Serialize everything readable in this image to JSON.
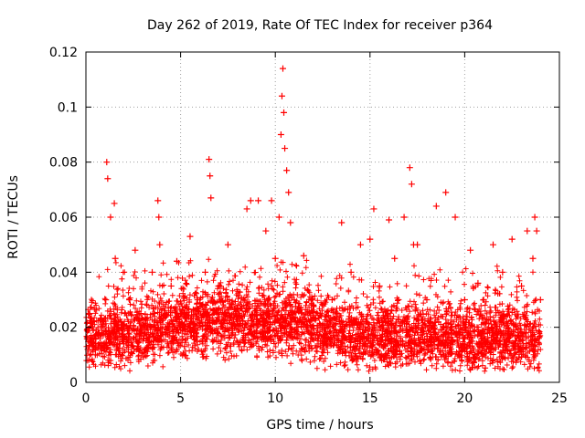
{
  "chart_data": {
    "type": "scatter",
    "title": "Day 262 of 2019, Rate Of TEC Index for receiver p364",
    "xlabel": "GPS time / hours",
    "ylabel": "ROTI / TECUs",
    "xlim": [
      0,
      25
    ],
    "ylim": [
      0,
      0.12
    ],
    "x_ticks": [
      0,
      5,
      10,
      15,
      20,
      25
    ],
    "x_tick_labels": [
      "0",
      "5",
      "10",
      "15",
      "20",
      "25"
    ],
    "y_ticks": [
      0,
      0.02,
      0.04,
      0.06,
      0.08,
      0.1,
      0.12
    ],
    "y_tick_labels": [
      "0",
      "0.02",
      "0.04",
      "0.06",
      "0.08",
      "0.1",
      "0.12"
    ],
    "grid": true,
    "marker": "+",
    "series": [
      {
        "name": "ROTI",
        "color": "#ff0000",
        "x": [
          0.1,
          0.2,
          0.35,
          0.5,
          0.7,
          0.9,
          1.05,
          1.1,
          1.15,
          1.3,
          1.5,
          1.55,
          1.7,
          2.0,
          2.3,
          2.6,
          2.9,
          3.2,
          3.5,
          3.8,
          3.85,
          3.9,
          4.2,
          4.5,
          4.8,
          5.2,
          5.5,
          5.9,
          6.3,
          6.5,
          6.55,
          6.6,
          7.0,
          7.5,
          8.0,
          8.5,
          8.7,
          9.1,
          9.5,
          9.8,
          10.0,
          10.2,
          10.3,
          10.35,
          10.4,
          10.45,
          10.5,
          10.6,
          10.7,
          10.8,
          11.0,
          11.5,
          12.0,
          12.5,
          13.0,
          13.5,
          14.0,
          14.5,
          15.0,
          15.2,
          15.5,
          16.0,
          16.3,
          16.5,
          16.8,
          17.1,
          17.2,
          17.3,
          17.5,
          18.0,
          18.5,
          18.9,
          19.0,
          19.5,
          20.0,
          20.3,
          20.7,
          21.0,
          21.5,
          22.0,
          22.5,
          23.0,
          23.3,
          23.6,
          23.7,
          23.8,
          24.0
        ],
        "y": [
          0.012,
          0.025,
          0.016,
          0.01,
          0.018,
          0.022,
          0.03,
          0.08,
          0.074,
          0.06,
          0.065,
          0.045,
          0.02,
          0.014,
          0.03,
          0.048,
          0.025,
          0.016,
          0.04,
          0.066,
          0.06,
          0.05,
          0.02,
          0.035,
          0.044,
          0.013,
          0.053,
          0.03,
          0.04,
          0.081,
          0.075,
          0.067,
          0.035,
          0.05,
          0.027,
          0.063,
          0.066,
          0.066,
          0.055,
          0.066,
          0.045,
          0.06,
          0.09,
          0.104,
          0.114,
          0.098,
          0.085,
          0.077,
          0.069,
          0.058,
          0.03,
          0.046,
          0.028,
          0.015,
          0.03,
          0.058,
          0.04,
          0.05,
          0.052,
          0.063,
          0.035,
          0.059,
          0.045,
          0.03,
          0.06,
          0.078,
          0.072,
          0.05,
          0.05,
          0.03,
          0.064,
          0.02,
          0.069,
          0.06,
          0.03,
          0.048,
          0.036,
          0.03,
          0.05,
          0.04,
          0.052,
          0.035,
          0.055,
          0.045,
          0.06,
          0.055,
          0.03
        ]
      }
    ]
  }
}
